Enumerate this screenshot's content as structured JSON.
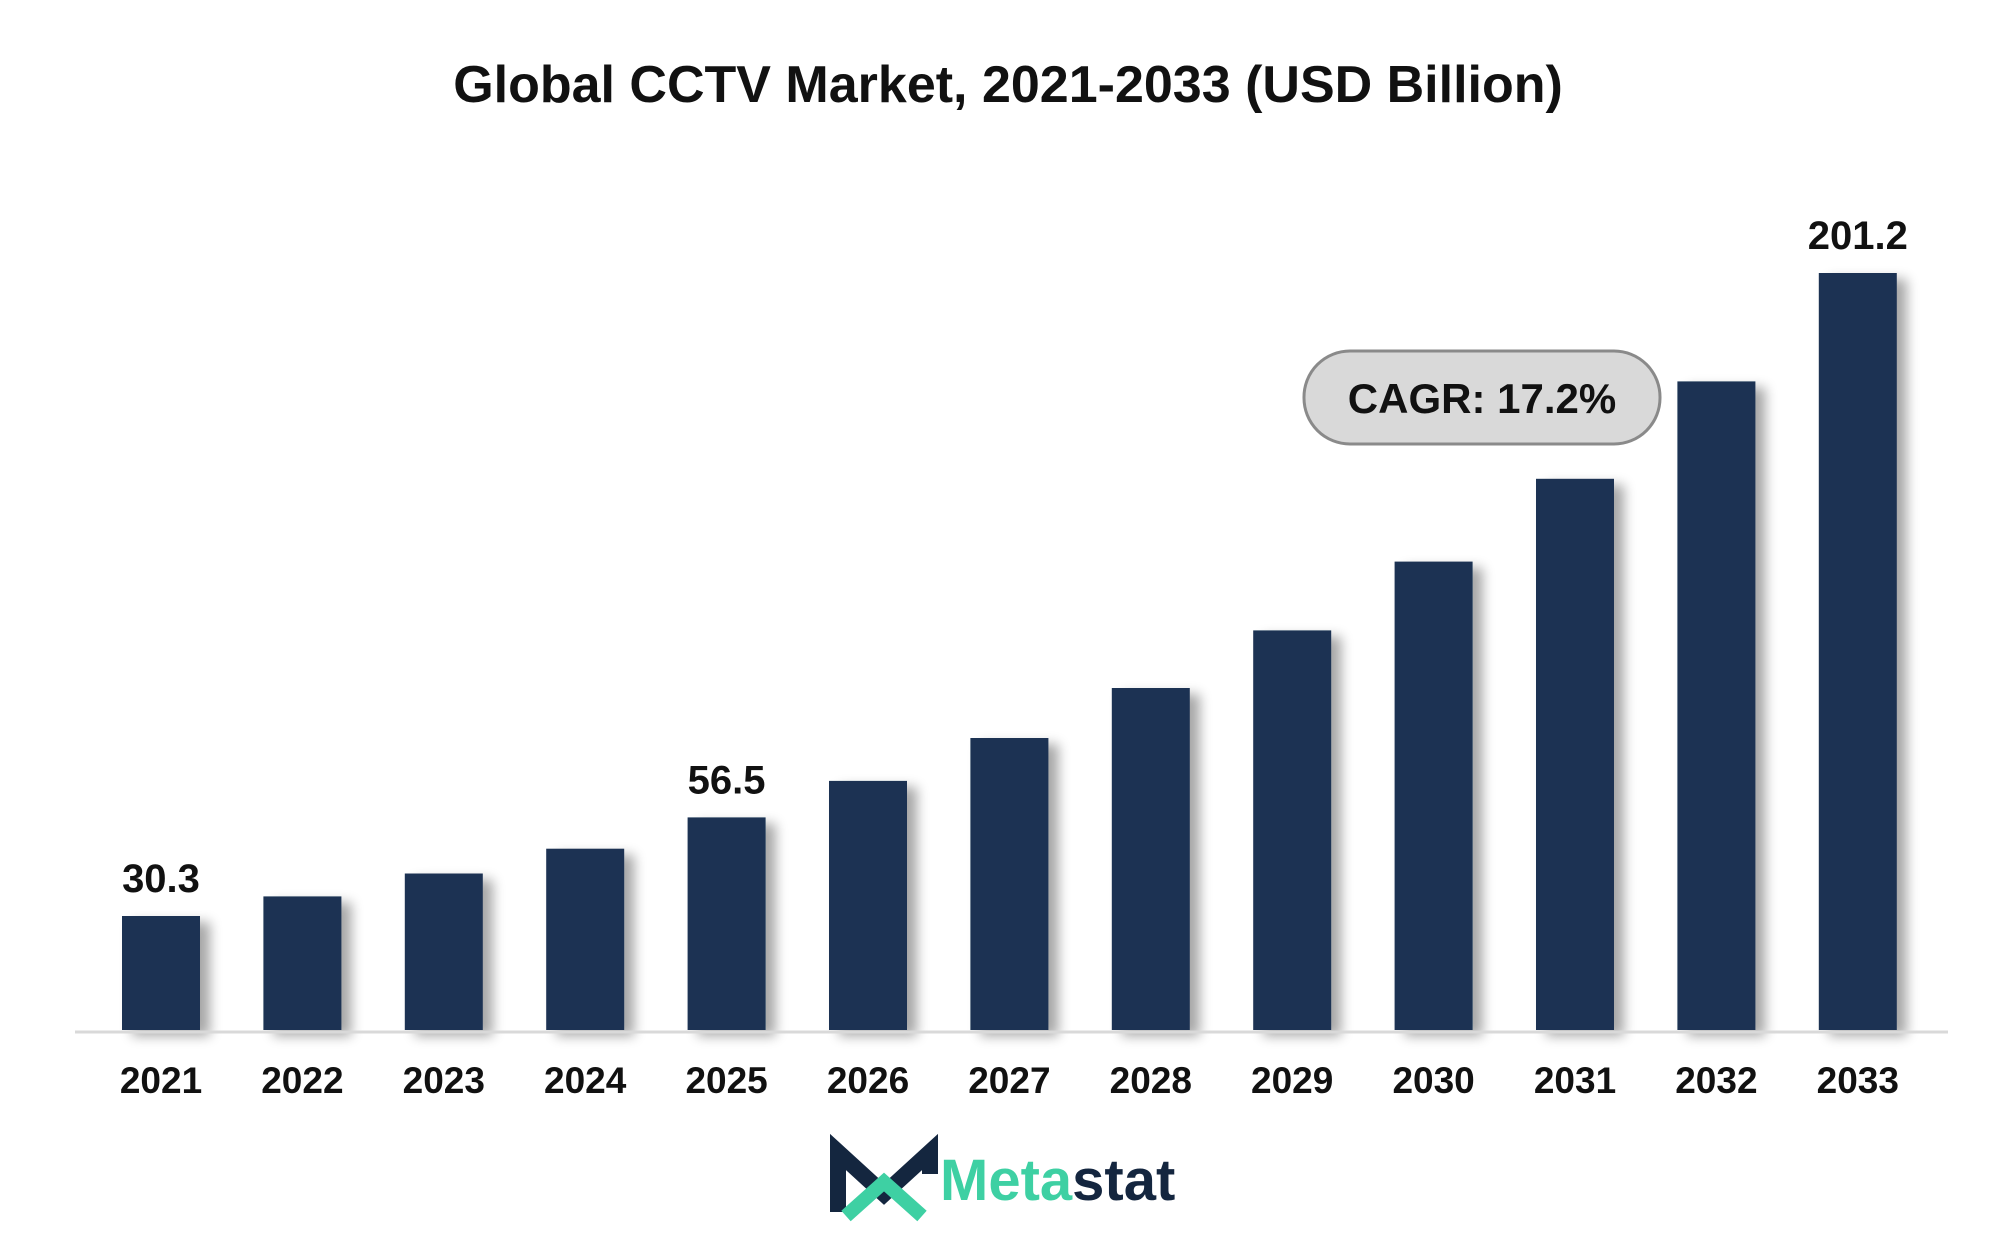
{
  "chart_data": {
    "type": "bar",
    "title": "Global CCTV Market, 2021-2033 (USD Billion)",
    "xlabel": "",
    "ylabel": "",
    "categories": [
      "2021",
      "2022",
      "2023",
      "2024",
      "2025",
      "2026",
      "2027",
      "2028",
      "2029",
      "2030",
      "2031",
      "2032",
      "2033"
    ],
    "values": [
      30.3,
      35.5,
      41.6,
      48.2,
      56.5,
      66.2,
      77.6,
      90.9,
      106.2,
      124.5,
      146.5,
      172.4,
      201.2
    ],
    "data_labels": {
      "0": "30.3",
      "4": "56.5",
      "12": "201.2"
    },
    "ylim": [
      0,
      210
    ],
    "grid": false,
    "legend": "none",
    "annotation": "CAGR: 17.2%",
    "colors": {
      "bar": "#1b3252",
      "text": "#111111",
      "baseline": "#d9d9d9",
      "badge_fill": "#d9d9d9",
      "badge_stroke": "#8a8a8a"
    }
  },
  "logo": {
    "text_part1": "Meta",
    "text_part2": "stat",
    "color_primary": "#14263f",
    "color_accent": "#3ed0a3"
  }
}
